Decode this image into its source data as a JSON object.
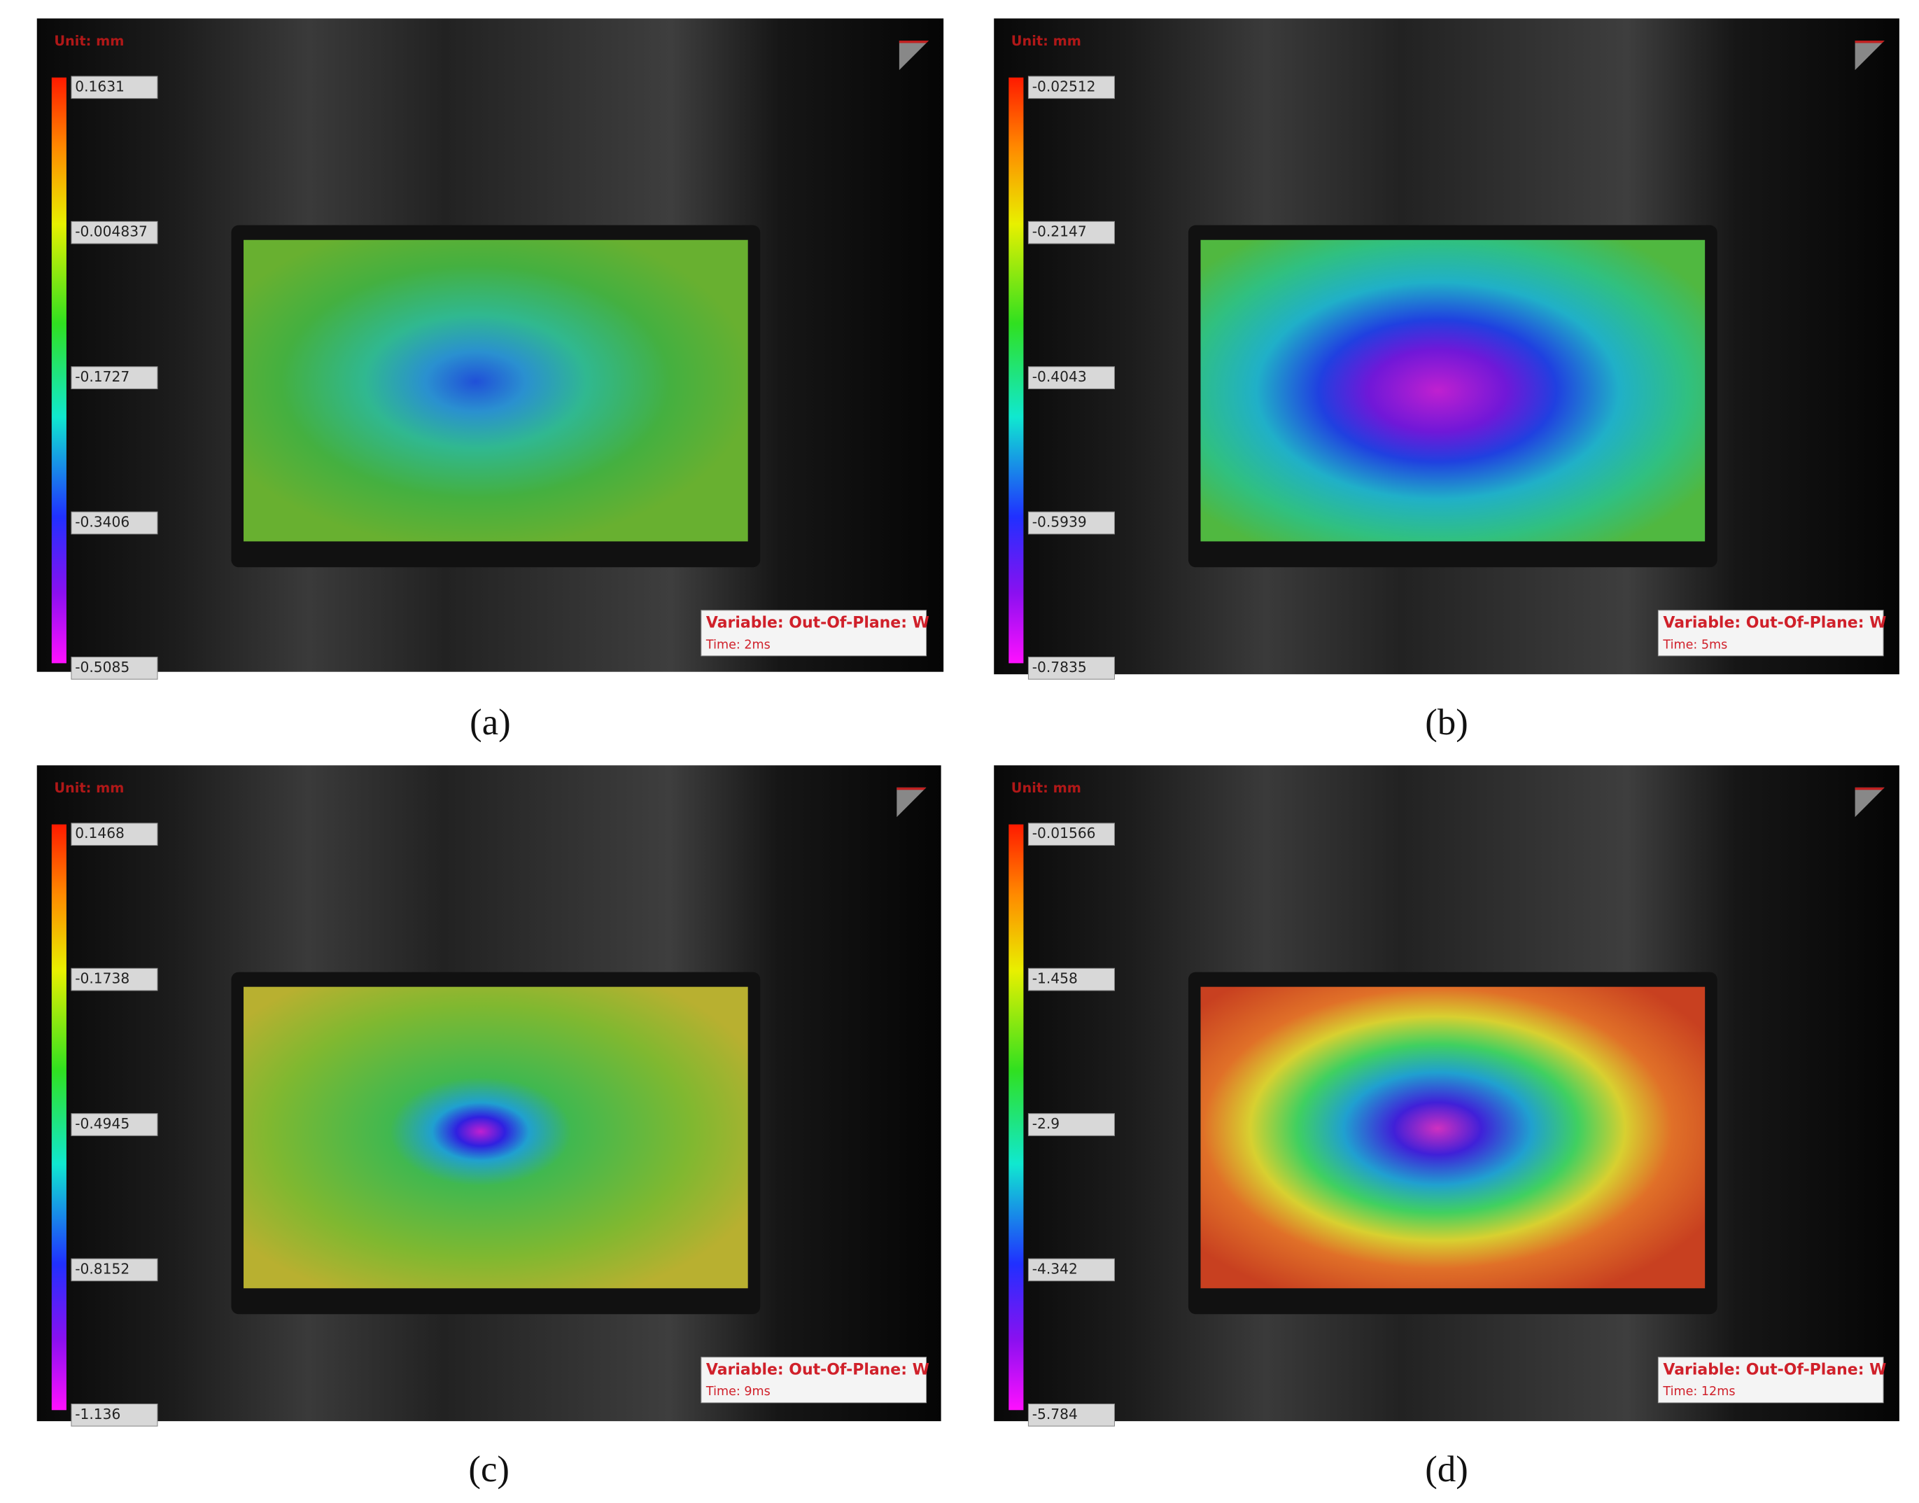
{
  "panels": [
    {
      "unit": "Unit: mm",
      "scale": [
        "0.1631",
        "-0.004837",
        "-0.1727",
        "-0.3406",
        "-0.5085"
      ],
      "variable": "Variable: Out-Of-Plane: W",
      "time": "Time: 2ms",
      "caption": "(a)"
    },
    {
      "unit": "Unit: mm",
      "scale": [
        "-0.02512",
        "-0.2147",
        "-0.4043",
        "-0.5939",
        "-0.7835"
      ],
      "variable": "Variable: Out-Of-Plane: W",
      "time": "Time: 5ms",
      "caption": "(b)"
    },
    {
      "unit": "Unit: mm",
      "scale": [
        "0.1468",
        "-0.1738",
        "-0.4945",
        "-0.8152",
        "-1.136"
      ],
      "variable": "Variable: Out-Of-Plane: W",
      "time": "Time: 9ms",
      "caption": "(c)"
    },
    {
      "unit": "Unit: mm",
      "scale": [
        "-0.01566",
        "-1.458",
        "-2.9",
        "-4.342",
        "-5.784"
      ],
      "variable": "Variable: Out-Of-Plane: W",
      "time": "Time: 12ms",
      "caption": "(d)"
    }
  ]
}
